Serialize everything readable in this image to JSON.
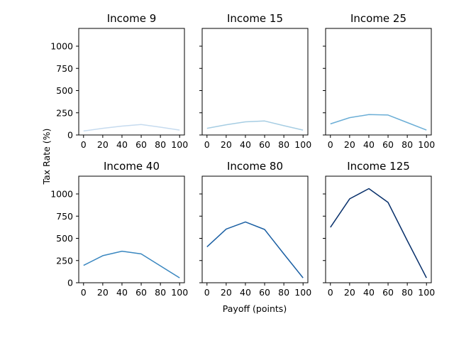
{
  "chart_data": {
    "type": "line",
    "layout": "2x3 small multiples, shared axes",
    "xlabel": "Payoff (points)",
    "ylabel": "Tax Rate (%)",
    "xlim": [
      -5,
      105
    ],
    "ylim": [
      0,
      1200
    ],
    "xticks": [
      0,
      20,
      40,
      60,
      80,
      100
    ],
    "yticks": [
      0,
      250,
      500,
      750,
      1000
    ],
    "grid": false,
    "legend": "none",
    "x": [
      0,
      20,
      40,
      60,
      80,
      100
    ],
    "panels": [
      {
        "title": "Income 9",
        "color": "#c6dbef",
        "values": [
          45,
          75,
          100,
          118,
          88,
          55
        ]
      },
      {
        "title": "Income 15",
        "color": "#a6cde3",
        "values": [
          75,
          115,
          148,
          158,
          105,
          55
        ]
      },
      {
        "title": "Income 25",
        "color": "#6baed6",
        "values": [
          125,
          195,
          230,
          225,
          140,
          55
        ]
      },
      {
        "title": "Income 40",
        "color": "#3a87c0",
        "values": [
          195,
          305,
          355,
          325,
          190,
          55
        ]
      },
      {
        "title": "Income 80",
        "color": "#1a5fa3",
        "values": [
          405,
          605,
          685,
          600,
          325,
          55
        ]
      },
      {
        "title": "Income 125",
        "color": "#08306b",
        "values": [
          625,
          945,
          1060,
          905,
          475,
          55
        ]
      }
    ]
  }
}
